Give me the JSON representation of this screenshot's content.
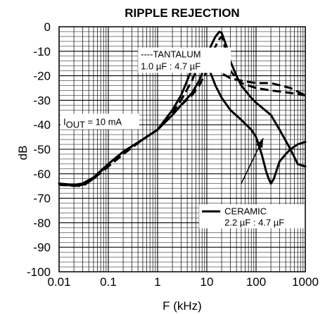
{
  "chart_data": {
    "type": "line",
    "title": "RIPPLE REJECTION",
    "xlabel": "F (kHz)",
    "ylabel": "dB",
    "x_scale": "log",
    "xlim": [
      0.01,
      1000
    ],
    "ylim": [
      -100,
      0
    ],
    "x_ticks": [
      0.01,
      0.1,
      1,
      10,
      100,
      1000
    ],
    "x_tick_labels": [
      "0.01",
      "0.1",
      "1",
      "10",
      "100",
      "1000"
    ],
    "y_ticks": [
      0,
      -10,
      -20,
      -30,
      -40,
      -50,
      -60,
      -70,
      -80,
      -90,
      -100
    ],
    "y_tick_labels": [
      "0",
      "-10",
      "-20",
      "-30",
      "-40",
      "-50",
      "-60",
      "-70",
      "-80",
      "-90",
      "-100"
    ],
    "grid": true,
    "series": [
      {
        "name": "CERAMIC",
        "style": "solid",
        "color": "#000000",
        "points": [
          [
            0.01,
            -64
          ],
          [
            0.02,
            -65
          ],
          [
            0.03,
            -64.5
          ],
          [
            0.05,
            -62
          ],
          [
            0.1,
            -56
          ],
          [
            0.2,
            -51
          ],
          [
            0.5,
            -46
          ],
          [
            1,
            -42
          ],
          [
            2,
            -34
          ],
          [
            3,
            -28
          ],
          [
            4,
            -22
          ],
          [
            5,
            -17
          ],
          [
            6,
            -13
          ],
          [
            7,
            -11
          ],
          [
            8,
            -11
          ],
          [
            10,
            -15
          ],
          [
            15,
            -24
          ],
          [
            20,
            -29
          ],
          [
            30,
            -34
          ],
          [
            50,
            -38
          ],
          [
            80,
            -42
          ],
          [
            100,
            -45
          ],
          [
            130,
            -52
          ],
          [
            160,
            -59
          ],
          [
            180,
            -62
          ],
          [
            200,
            -64
          ],
          [
            230,
            -62
          ],
          [
            300,
            -55
          ],
          [
            400,
            -52
          ],
          [
            500,
            -50
          ],
          [
            700,
            -48
          ],
          [
            1000,
            -47
          ]
        ]
      },
      {
        "name": "CERAMIC",
        "style": "solid",
        "color": "#000000",
        "points": [
          [
            0.01,
            -64
          ],
          [
            0.02,
            -64.5
          ],
          [
            0.03,
            -64
          ],
          [
            0.05,
            -61.5
          ],
          [
            0.1,
            -56
          ],
          [
            0.2,
            -51
          ],
          [
            0.5,
            -46
          ],
          [
            1,
            -42
          ],
          [
            2,
            -36
          ],
          [
            3,
            -32
          ],
          [
            5,
            -27
          ],
          [
            7,
            -22
          ],
          [
            10,
            -14
          ],
          [
            12,
            -8
          ],
          [
            15,
            -4
          ],
          [
            18,
            -2
          ],
          [
            20,
            -2.5
          ],
          [
            25,
            -8
          ],
          [
            30,
            -14
          ],
          [
            40,
            -20
          ],
          [
            50,
            -24
          ],
          [
            80,
            -29
          ],
          [
            100,
            -31
          ],
          [
            200,
            -36
          ],
          [
            300,
            -42
          ],
          [
            500,
            -50
          ],
          [
            700,
            -56
          ],
          [
            1000,
            -57
          ]
        ]
      },
      {
        "name": "TANTALUM",
        "style": "dashed",
        "color": "#000000",
        "points": [
          [
            0.01,
            -64.5
          ],
          [
            0.03,
            -65
          ],
          [
            0.05,
            -62
          ],
          [
            0.1,
            -57
          ],
          [
            0.2,
            -52
          ],
          [
            0.5,
            -46
          ],
          [
            1,
            -42
          ],
          [
            2,
            -36
          ],
          [
            3,
            -32
          ],
          [
            5,
            -28
          ],
          [
            7,
            -24
          ],
          [
            10,
            -18
          ],
          [
            12,
            -13
          ],
          [
            15,
            -8
          ],
          [
            18,
            -5
          ],
          [
            20,
            -4
          ],
          [
            22,
            -6
          ],
          [
            25,
            -12
          ],
          [
            30,
            -18
          ],
          [
            40,
            -21
          ],
          [
            50,
            -23
          ],
          [
            100,
            -25
          ],
          [
            200,
            -26
          ],
          [
            500,
            -27
          ],
          [
            1000,
            -28
          ]
        ]
      },
      {
        "name": "TANTALUM",
        "style": "dashed",
        "color": "#000000",
        "points": [
          [
            0.01,
            -64.5
          ],
          [
            0.03,
            -65
          ],
          [
            0.05,
            -62
          ],
          [
            0.1,
            -57
          ],
          [
            0.2,
            -52
          ],
          [
            0.5,
            -46
          ],
          [
            1,
            -42
          ],
          [
            2,
            -35
          ],
          [
            3,
            -30
          ],
          [
            5,
            -22
          ],
          [
            7,
            -15
          ],
          [
            8,
            -13
          ],
          [
            10,
            -14
          ],
          [
            15,
            -17
          ],
          [
            20,
            -19
          ],
          [
            30,
            -21
          ],
          [
            50,
            -22
          ],
          [
            100,
            -23
          ],
          [
            200,
            -23
          ],
          [
            500,
            -25
          ],
          [
            1000,
            -28
          ]
        ]
      }
    ],
    "annotations": {
      "tantalum_line1": "----TANTALUM",
      "tantalum_line2": "1.0 µF : 4.7 µF",
      "iout_prefix": "I",
      "iout_sub": "OUT",
      "iout_suffix": " = 10 mA",
      "ceramic_line1": "CERAMIC",
      "ceramic_line2": "2.2 µF : 4.7 µF"
    }
  }
}
